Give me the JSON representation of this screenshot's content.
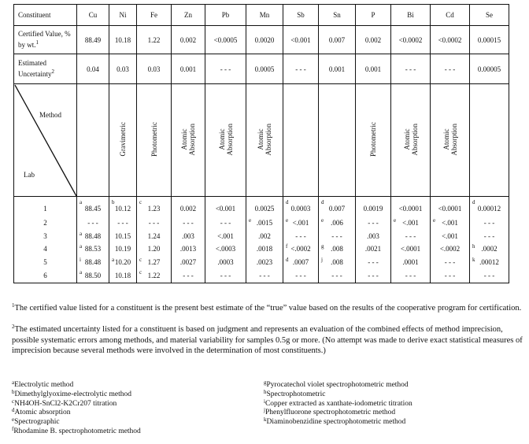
{
  "table": {
    "header_label": "Constituent",
    "constituents": [
      "Cu",
      "Ni",
      "Fe",
      "Zn",
      "Pb",
      "Mn",
      "Sb",
      "Sn",
      "P",
      "Bi",
      "Cd",
      "Se"
    ],
    "certified_label": "Certified Value, % by wt.",
    "certified_label_note": "1",
    "certified_values": [
      "88.49",
      "10.18",
      "1.22",
      "0.002",
      "<0.0005",
      "0.0020",
      "<0.001",
      "0.007",
      "0.002",
      "<0.0002",
      "<0.0002",
      "0.00015"
    ],
    "uncertainty_label": "Estimated Uncertainty",
    "uncertainty_label_note": "2",
    "uncertainty_values": [
      "0.04",
      "0.03",
      "0.03",
      "0.001",
      "- - -",
      "0.0005",
      "- - -",
      "0.001",
      "0.001",
      "- - -",
      "- - -",
      "0.00005"
    ],
    "method_label": "Method",
    "lab_label": "Lab",
    "methods": [
      [],
      [
        "Gravimetric"
      ],
      [
        "Photometric"
      ],
      [
        "Atomic",
        "Absorption"
      ],
      [
        "Atomic",
        "Absorption"
      ],
      [
        "Atomic",
        "Absorption"
      ],
      [],
      [],
      [
        "Photometric"
      ],
      [
        "Atomic",
        "Absorption"
      ],
      [
        "Atomic",
        "Absorption"
      ],
      []
    ],
    "rows": [
      {
        "lab": "1",
        "cells": [
          [
            "a",
            "88.45"
          ],
          [
            "b",
            "10.12"
          ],
          [
            "c",
            "1.23"
          ],
          [
            "",
            "0.002"
          ],
          [
            "",
            "<0.001"
          ],
          [
            "",
            "0.0025"
          ],
          [
            "d",
            "0.0003"
          ],
          [
            "d",
            "0.007"
          ],
          [
            "",
            "0.0019"
          ],
          [
            "",
            "<0.0001"
          ],
          [
            "",
            "<0.0001"
          ],
          [
            "d",
            "0.00012"
          ]
        ]
      },
      {
        "lab": "2",
        "cells": [
          [
            "",
            "- - -"
          ],
          [
            "",
            "- - -"
          ],
          [
            "",
            "- - -"
          ],
          [
            "",
            "- - -"
          ],
          [
            "",
            "- - -"
          ],
          [
            "e",
            ".0015"
          ],
          [
            "e",
            "<.001"
          ],
          [
            "e",
            ".006"
          ],
          [
            "",
            "- - -"
          ],
          [
            "e",
            "<.001"
          ],
          [
            "e",
            "<.001"
          ],
          [
            "",
            "- - -"
          ]
        ]
      },
      {
        "lab": "3",
        "cells": [
          [
            "a",
            "88.48"
          ],
          [
            "",
            "10.15"
          ],
          [
            "",
            "1.24"
          ],
          [
            "",
            ".003"
          ],
          [
            "",
            "<.001"
          ],
          [
            "",
            ".002"
          ],
          [
            "",
            "- - -"
          ],
          [
            "",
            "- - -"
          ],
          [
            "",
            ".003"
          ],
          [
            "",
            "- - -"
          ],
          [
            "",
            "<.001"
          ],
          [
            "",
            "- - -"
          ]
        ]
      },
      {
        "lab": "4",
        "cells": [
          [
            "a",
            "88.53"
          ],
          [
            "",
            "10.19"
          ],
          [
            "",
            "1.20"
          ],
          [
            "",
            ".0013"
          ],
          [
            "",
            "<.0003"
          ],
          [
            "",
            ".0018"
          ],
          [
            "f",
            "<.0002"
          ],
          [
            "g",
            ".008"
          ],
          [
            "",
            ".0021"
          ],
          [
            "",
            "<.0001"
          ],
          [
            "",
            "<.0002"
          ],
          [
            "h",
            ".0002"
          ]
        ]
      },
      {
        "lab": "5",
        "cells": [
          [
            "i",
            "88.48"
          ],
          [
            "a",
            "10.20"
          ],
          [
            "c",
            "1.27"
          ],
          [
            "",
            ".0027"
          ],
          [
            "",
            ".0003"
          ],
          [
            "",
            ".0023"
          ],
          [
            "d",
            ".0007"
          ],
          [
            "j",
            ".008"
          ],
          [
            "",
            "- - -"
          ],
          [
            "",
            ".0001"
          ],
          [
            "",
            "- - -"
          ],
          [
            "k",
            ".00012"
          ]
        ]
      },
      {
        "lab": "6",
        "cells": [
          [
            "a",
            "88.50"
          ],
          [
            "",
            "10.18"
          ],
          [
            "c",
            "1.22"
          ],
          [
            "",
            "- - -"
          ],
          [
            "",
            "- - -"
          ],
          [
            "",
            "- - -"
          ],
          [
            "",
            "- - -"
          ],
          [
            "",
            "- - -"
          ],
          [
            "",
            "- - -"
          ],
          [
            "",
            "- - -"
          ],
          [
            "",
            "- - -"
          ],
          [
            "",
            "- - -"
          ]
        ]
      }
    ]
  },
  "footnotes": [
    {
      "mark": "1",
      "text": "The certified value listed for a constituent is the present best estimate of the “true” value based on the results of the cooperative program for certification."
    },
    {
      "mark": "2",
      "text": "The estimated uncertainty listed for a constituent is based on judgment and represents an evaluation of the combined effects of method imprecision, possible systematic errors among methods, and material variability for samples 0.5g or more. (No attempt was made to derive exact statistical measures of imprecision because several methods were involved in the determination of most constituents.)"
    }
  ],
  "legend_left": [
    {
      "mark": "a",
      "text": "Electrolytic method"
    },
    {
      "mark": "b",
      "text": "Dimethylglyoxime-electrolytic method"
    },
    {
      "mark": "c",
      "text": "NH4OH-SnCl2-K2Cr207 titration"
    },
    {
      "mark": "d",
      "text": "Atomic absorption"
    },
    {
      "mark": "e",
      "text": "Spectrographic"
    },
    {
      "mark": "f",
      "text": "Rhodamine B. spectrophotometric method"
    }
  ],
  "legend_right": [
    {
      "mark": "g",
      "text": "Pyrocatechol violet spectrophotometric method"
    },
    {
      "mark": "h",
      "text": "Spectrophotometric"
    },
    {
      "mark": "i",
      "text": "Copper extracted as xanthate-iodometric titration"
    },
    {
      "mark": "j",
      "text": "Phenylfluorone spectrophotometric method"
    },
    {
      "mark": "k",
      "text": "Diaminobenzidine spectrophotometric method"
    }
  ]
}
